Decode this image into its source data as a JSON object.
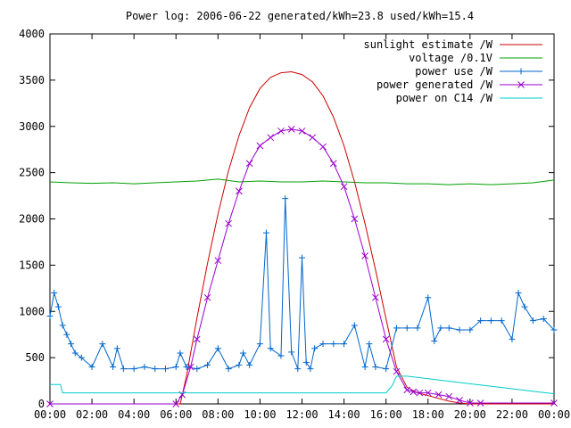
{
  "chart_data": {
    "type": "line",
    "title": "Power log: 2006-06-22 generated/kWh=23.8 used/kWh=15.4",
    "xlabel": "",
    "ylabel": "",
    "xlim": [
      0,
      24
    ],
    "ylim": [
      0,
      4000
    ],
    "grid": false,
    "legend_position": "top-right",
    "x_ticks": [
      0,
      2,
      4,
      6,
      8,
      10,
      12,
      14,
      16,
      18,
      20,
      22,
      24
    ],
    "x_tick_labels": [
      "00:00",
      "02:00",
      "04:00",
      "06:00",
      "08:00",
      "10:00",
      "12:00",
      "14:00",
      "16:00",
      "18:00",
      "20:00",
      "22:00",
      "00:00"
    ],
    "y_ticks": [
      0,
      500,
      1000,
      1500,
      2000,
      2500,
      3000,
      3500,
      4000
    ],
    "y_tick_labels": [
      "0",
      "500",
      "1000",
      "1500",
      "2000",
      "2500",
      "3000",
      "3500",
      "4000"
    ],
    "series": [
      {
        "name": "sunlight estimate /W",
        "color": "#cc0000",
        "marker": "none",
        "x": [
          0,
          6.2,
          6.5,
          7,
          7.5,
          8,
          8.5,
          9,
          9.5,
          10,
          10.5,
          11,
          11.5,
          12,
          12.5,
          13,
          13.5,
          14,
          14.5,
          15,
          15.5,
          16,
          16.5,
          17,
          17.5,
          18,
          18.5,
          19,
          19.5,
          20,
          24
        ],
        "y": [
          0,
          0,
          300,
          930,
          1520,
          2050,
          2520,
          2900,
          3200,
          3410,
          3530,
          3580,
          3590,
          3560,
          3480,
          3330,
          3100,
          2790,
          2400,
          1950,
          1450,
          920,
          400,
          180,
          120,
          90,
          60,
          30,
          10,
          0,
          0
        ]
      },
      {
        "name": "voltage /0.1V",
        "color": "#00a000",
        "marker": "none",
        "x": [
          0,
          1,
          2,
          3,
          4,
          5,
          6,
          7,
          8,
          9,
          10,
          11,
          12,
          13,
          14,
          15,
          16,
          17,
          18,
          19,
          20,
          21,
          22,
          23,
          24
        ],
        "y": [
          2400,
          2390,
          2385,
          2390,
          2380,
          2390,
          2400,
          2410,
          2430,
          2400,
          2410,
          2400,
          2400,
          2410,
          2400,
          2390,
          2390,
          2380,
          2380,
          2370,
          2380,
          2370,
          2380,
          2390,
          2420
        ]
      },
      {
        "name": "power use /W",
        "color": "#0066cc",
        "marker": "plus",
        "x": [
          0,
          0.2,
          0.4,
          0.6,
          0.8,
          1.0,
          1.2,
          1.5,
          2.0,
          2.5,
          3.0,
          3.2,
          3.5,
          4.0,
          4.5,
          5.0,
          5.5,
          6.0,
          6.2,
          6.5,
          7.0,
          7.5,
          8.0,
          8.5,
          9.0,
          9.2,
          9.5,
          10.0,
          10.3,
          10.5,
          11.0,
          11.2,
          11.5,
          11.8,
          12.0,
          12.2,
          12.4,
          12.6,
          13.0,
          13.5,
          14.0,
          14.5,
          15.0,
          15.2,
          15.5,
          16.0,
          16.5,
          17.0,
          17.5,
          18.0,
          18.3,
          18.6,
          19.0,
          19.5,
          20.0,
          20.5,
          21.0,
          21.5,
          22.0,
          22.3,
          22.6,
          23.0,
          23.5,
          24.0
        ],
        "y": [
          950,
          1200,
          1050,
          850,
          750,
          650,
          550,
          500,
          400,
          650,
          400,
          600,
          380,
          380,
          400,
          380,
          380,
          400,
          550,
          400,
          380,
          420,
          600,
          380,
          420,
          550,
          420,
          650,
          1850,
          600,
          520,
          2220,
          560,
          380,
          1580,
          450,
          380,
          600,
          650,
          650,
          650,
          850,
          400,
          650,
          400,
          380,
          820,
          820,
          820,
          1150,
          680,
          820,
          820,
          800,
          800,
          900,
          900,
          900,
          700,
          1200,
          1050,
          900,
          920,
          800
        ]
      },
      {
        "name": "power generated /W",
        "color": "#9900cc",
        "marker": "cross",
        "x": [
          0,
          6.0,
          6.3,
          6.7,
          7.0,
          7.5,
          8.0,
          8.5,
          9.0,
          9.5,
          10.0,
          10.5,
          11.0,
          11.5,
          12.0,
          12.5,
          13.0,
          13.5,
          14.0,
          14.5,
          15.0,
          15.5,
          16.0,
          16.5,
          17.0,
          17.3,
          17.6,
          18.0,
          18.5,
          19.0,
          19.5,
          20.0,
          20.5,
          24.0
        ],
        "y": [
          0,
          0,
          100,
          400,
          700,
          1150,
          1550,
          1950,
          2300,
          2600,
          2790,
          2880,
          2950,
          2970,
          2950,
          2880,
          2780,
          2600,
          2350,
          2000,
          1600,
          1150,
          700,
          350,
          150,
          130,
          120,
          120,
          100,
          80,
          40,
          10,
          10,
          10
        ]
      },
      {
        "name": "power on C14 /W",
        "color": "#00cccc",
        "marker": "none",
        "x": [
          0,
          0.5,
          0.6,
          6.0,
          6.1,
          16.0,
          16.3,
          16.5,
          17.0,
          24.0
        ],
        "y": [
          210,
          210,
          120,
          120,
          120,
          120,
          200,
          300,
          300,
          110
        ]
      }
    ]
  }
}
